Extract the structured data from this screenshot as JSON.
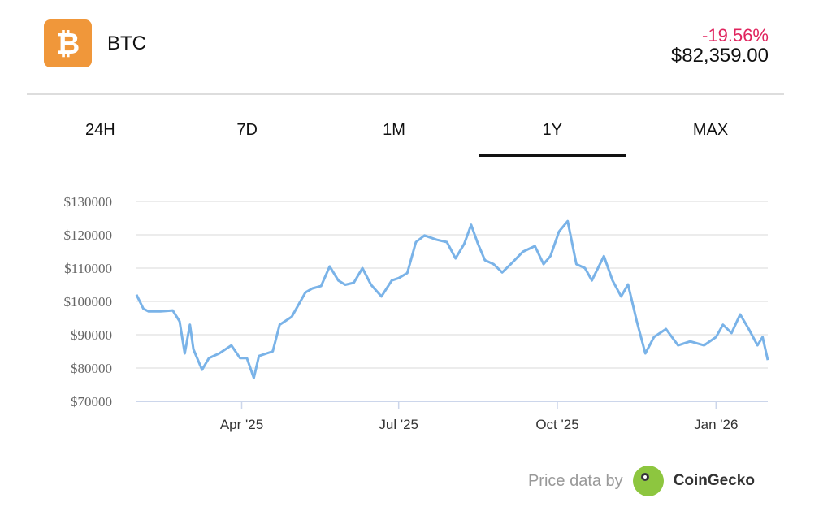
{
  "header": {
    "symbol": "BTC",
    "logo_glyph": "₿",
    "change": "-19.56%",
    "price": "$82,359.00",
    "change_color": "#e0245e",
    "logo_color": "#f0973a"
  },
  "tabs": [
    {
      "label": "24H"
    },
    {
      "label": "7D"
    },
    {
      "label": "1M"
    },
    {
      "label": "1Y",
      "active": true
    },
    {
      "label": "MAX"
    }
  ],
  "footer": {
    "text": "Price data by",
    "brand": "CoinGecko"
  },
  "chart_data": {
    "type": "line",
    "line_color": "#7ab3e8",
    "grid": true,
    "ylim": [
      70000,
      130000
    ],
    "yticks": [
      {
        "v": 70000,
        "label": "$70000"
      },
      {
        "v": 80000,
        "label": "$80000"
      },
      {
        "v": 90000,
        "label": "$90000"
      },
      {
        "v": 100000,
        "label": "$100000"
      },
      {
        "v": 110000,
        "label": "$110000"
      },
      {
        "v": 120000,
        "label": "$120000"
      },
      {
        "v": 130000,
        "label": "$130000"
      }
    ],
    "xlim": [
      "2025-01-30",
      "2026-01-31"
    ],
    "xticks": [
      {
        "d": "2025-04-01",
        "label": "Apr '25"
      },
      {
        "d": "2025-07-01",
        "label": "Jul '25"
      },
      {
        "d": "2025-10-01",
        "label": "Oct '25"
      },
      {
        "d": "2026-01-01",
        "label": "Jan '26"
      }
    ],
    "points": [
      [
        "2025-01-30",
        102000
      ],
      [
        "2025-02-03",
        97800
      ],
      [
        "2025-02-06",
        97000
      ],
      [
        "2025-02-13",
        97000
      ],
      [
        "2025-02-20",
        97300
      ],
      [
        "2025-02-24",
        94000
      ],
      [
        "2025-02-27",
        84400
      ],
      [
        "2025-03-02",
        93000
      ],
      [
        "2025-03-04",
        85600
      ],
      [
        "2025-03-09",
        79500
      ],
      [
        "2025-03-13",
        83000
      ],
      [
        "2025-03-19",
        84400
      ],
      [
        "2025-03-26",
        86800
      ],
      [
        "2025-03-31",
        83000
      ],
      [
        "2025-04-04",
        83000
      ],
      [
        "2025-04-08",
        77000
      ],
      [
        "2025-04-11",
        83600
      ],
      [
        "2025-04-19",
        85000
      ],
      [
        "2025-04-23",
        93000
      ],
      [
        "2025-04-30",
        95400
      ],
      [
        "2025-05-08",
        102700
      ],
      [
        "2025-05-12",
        103900
      ],
      [
        "2025-05-17",
        104600
      ],
      [
        "2025-05-22",
        110500
      ],
      [
        "2025-05-27",
        106300
      ],
      [
        "2025-05-31",
        105000
      ],
      [
        "2025-06-05",
        105600
      ],
      [
        "2025-06-10",
        110000
      ],
      [
        "2025-06-15",
        105000
      ],
      [
        "2025-06-21",
        101500
      ],
      [
        "2025-06-27",
        106300
      ],
      [
        "2025-07-01",
        107000
      ],
      [
        "2025-07-06",
        108500
      ],
      [
        "2025-07-11",
        117800
      ],
      [
        "2025-07-16",
        119800
      ],
      [
        "2025-07-23",
        118500
      ],
      [
        "2025-07-29",
        117800
      ],
      [
        "2025-08-03",
        112900
      ],
      [
        "2025-08-08",
        117300
      ],
      [
        "2025-08-12",
        123000
      ],
      [
        "2025-08-16",
        117300
      ],
      [
        "2025-08-20",
        112400
      ],
      [
        "2025-08-25",
        111200
      ],
      [
        "2025-08-30",
        108700
      ],
      [
        "2025-09-04",
        111200
      ],
      [
        "2025-09-11",
        114900
      ],
      [
        "2025-09-18",
        116600
      ],
      [
        "2025-09-23",
        111200
      ],
      [
        "2025-09-27",
        113600
      ],
      [
        "2025-10-02",
        121000
      ],
      [
        "2025-10-07",
        124100
      ],
      [
        "2025-10-12",
        111200
      ],
      [
        "2025-10-17",
        110000
      ],
      [
        "2025-10-21",
        106300
      ],
      [
        "2025-10-28",
        113600
      ],
      [
        "2025-11-02",
        106300
      ],
      [
        "2025-11-07",
        101500
      ],
      [
        "2025-11-11",
        105100
      ],
      [
        "2025-11-16",
        94100
      ],
      [
        "2025-11-21",
        84400
      ],
      [
        "2025-11-26",
        89300
      ],
      [
        "2025-12-03",
        91700
      ],
      [
        "2025-12-10",
        86800
      ],
      [
        "2025-12-17",
        88000
      ],
      [
        "2025-12-25",
        86800
      ],
      [
        "2026-01-01",
        89300
      ],
      [
        "2026-01-05",
        93000
      ],
      [
        "2026-01-10",
        90500
      ],
      [
        "2026-01-15",
        96100
      ],
      [
        "2026-01-20",
        91700
      ],
      [
        "2026-01-25",
        86800
      ],
      [
        "2026-01-28",
        89300
      ],
      [
        "2026-01-31",
        82400
      ]
    ]
  }
}
